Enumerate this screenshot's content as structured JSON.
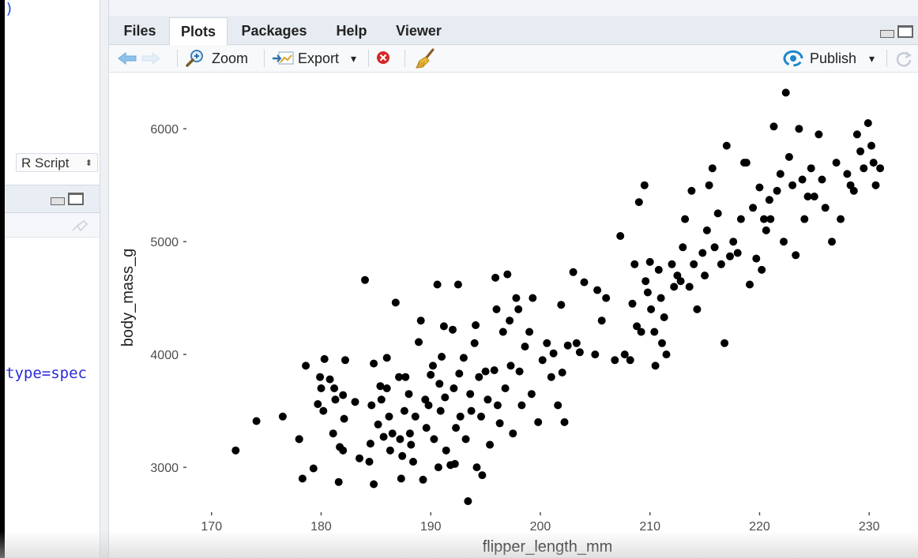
{
  "left_pane": {
    "paren": ")",
    "script_type": "R Script",
    "script_type_arrows": "⬍",
    "code_fragment": "type=spec"
  },
  "tabs": [
    {
      "label": "Files",
      "active": false
    },
    {
      "label": "Plots",
      "active": true
    },
    {
      "label": "Packages",
      "active": false
    },
    {
      "label": "Help",
      "active": false
    },
    {
      "label": "Viewer",
      "active": false
    }
  ],
  "toolbar": {
    "zoom_label": "Zoom",
    "export_label": "Export",
    "publish_label": "Publish",
    "dropdown_glyph": "▾"
  },
  "colors": {
    "tab_bar": "#e7ecf2",
    "points": "#000000",
    "publish_icon": "#1e88c8",
    "remove_icon": "#d62828"
  },
  "chart_data": {
    "type": "scatter",
    "xlabel": "flipper_length_mm",
    "ylabel": "body_mass_g",
    "xlim": [
      168,
      231.5
    ],
    "ylim": [
      2630,
      6470
    ],
    "xticks": [
      170,
      180,
      190,
      200,
      210,
      220,
      230
    ],
    "yticks": [
      3000,
      4000,
      5000,
      6000
    ],
    "grid": false,
    "points": [
      [
        172.2,
        3150
      ],
      [
        174.1,
        3410
      ],
      [
        176.5,
        3450
      ],
      [
        178.0,
        3250
      ],
      [
        178.0,
        3250
      ],
      [
        178.3,
        2900
      ],
      [
        178.6,
        3900
      ],
      [
        179.3,
        2990
      ],
      [
        179.7,
        3560
      ],
      [
        179.9,
        3800
      ],
      [
        180.0,
        3700
      ],
      [
        180.3,
        3960
      ],
      [
        180.2,
        3500
      ],
      [
        180.8,
        3780
      ],
      [
        181.2,
        3700
      ],
      [
        181.1,
        3300
      ],
      [
        181.3,
        3600
      ],
      [
        181.6,
        2870
      ],
      [
        181.7,
        3180
      ],
      [
        182.0,
        3150
      ],
      [
        182.1,
        3430
      ],
      [
        182.2,
        3950
      ],
      [
        182.0,
        3640
      ],
      [
        183.1,
        3580
      ],
      [
        183.5,
        3080
      ],
      [
        184.0,
        4660
      ],
      [
        184.4,
        3050
      ],
      [
        184.6,
        3550
      ],
      [
        184.8,
        3920
      ],
      [
        184.5,
        3210
      ],
      [
        184.8,
        2850
      ],
      [
        185.2,
        3380
      ],
      [
        185.4,
        3720
      ],
      [
        185.5,
        3600
      ],
      [
        185.7,
        3270
      ],
      [
        186.0,
        3970
      ],
      [
        186.0,
        3700
      ],
      [
        186.2,
        3450
      ],
      [
        186.3,
        3150
      ],
      [
        186.5,
        3300
      ],
      [
        186.8,
        4460
      ],
      [
        187.1,
        3800
      ],
      [
        187.2,
        3250
      ],
      [
        187.4,
        3100
      ],
      [
        187.3,
        2900
      ],
      [
        187.6,
        3500
      ],
      [
        187.7,
        3800
      ],
      [
        188.0,
        3650
      ],
      [
        188.1,
        3300
      ],
      [
        188.2,
        3200
      ],
      [
        188.4,
        3050
      ],
      [
        188.6,
        3450
      ],
      [
        188.9,
        4110
      ],
      [
        189.1,
        4300
      ],
      [
        189.3,
        2890
      ],
      [
        189.5,
        3600
      ],
      [
        189.6,
        3350
      ],
      [
        189.8,
        3550
      ],
      [
        190.0,
        3820
      ],
      [
        190.2,
        3900
      ],
      [
        190.3,
        3250
      ],
      [
        190.6,
        4620
      ],
      [
        190.8,
        3740
      ],
      [
        190.9,
        3500
      ],
      [
        190.7,
        3000
      ],
      [
        191.2,
        4250
      ],
      [
        191.0,
        3980
      ],
      [
        191.3,
        3620
      ],
      [
        191.4,
        3150
      ],
      [
        191.8,
        3020
      ],
      [
        192.0,
        4220
      ],
      [
        192.1,
        3700
      ],
      [
        192.3,
        3350
      ],
      [
        192.5,
        4620
      ],
      [
        192.6,
        3830
      ],
      [
        192.7,
        3450
      ],
      [
        192.2,
        3030
      ],
      [
        193.0,
        3970
      ],
      [
        193.2,
        3250
      ],
      [
        193.4,
        2700
      ],
      [
        193.6,
        3650
      ],
      [
        193.7,
        3500
      ],
      [
        194.0,
        4100
      ],
      [
        194.1,
        4260
      ],
      [
        194.2,
        3000
      ],
      [
        194.4,
        3800
      ],
      [
        194.6,
        3450
      ],
      [
        194.7,
        2930
      ],
      [
        195.0,
        3850
      ],
      [
        195.2,
        3600
      ],
      [
        195.4,
        3200
      ],
      [
        195.8,
        3860
      ],
      [
        195.9,
        4680
      ],
      [
        196.0,
        4400
      ],
      [
        196.1,
        3550
      ],
      [
        196.3,
        3390
      ],
      [
        196.6,
        4200
      ],
      [
        196.8,
        3700
      ],
      [
        197.0,
        4710
      ],
      [
        197.2,
        4300
      ],
      [
        197.3,
        3900
      ],
      [
        197.5,
        3300
      ],
      [
        197.8,
        4500
      ],
      [
        198.0,
        4400
      ],
      [
        198.1,
        3850
      ],
      [
        198.3,
        3550
      ],
      [
        198.6,
        4070
      ],
      [
        199.0,
        4200
      ],
      [
        199.2,
        3650
      ],
      [
        199.3,
        4500
      ],
      [
        199.8,
        3400
      ],
      [
        200.2,
        3950
      ],
      [
        200.6,
        4100
      ],
      [
        201.0,
        3800
      ],
      [
        201.2,
        4010
      ],
      [
        201.6,
        3550
      ],
      [
        201.9,
        4440
      ],
      [
        202.0,
        3840
      ],
      [
        202.2,
        3400
      ],
      [
        202.5,
        4080
      ],
      [
        203.0,
        4730
      ],
      [
        203.3,
        4100
      ],
      [
        203.6,
        4020
      ],
      [
        204.0,
        4640
      ],
      [
        205.0,
        4000
      ],
      [
        205.2,
        4570
      ],
      [
        205.6,
        4300
      ],
      [
        206.0,
        4500
      ],
      [
        206.8,
        3950
      ],
      [
        207.3,
        5050
      ],
      [
        207.7,
        4000
      ],
      [
        208.2,
        3950
      ],
      [
        208.4,
        4450
      ],
      [
        208.6,
        4800
      ],
      [
        208.8,
        4250
      ],
      [
        209.0,
        5350
      ],
      [
        209.2,
        4200
      ],
      [
        209.5,
        5500
      ],
      [
        209.6,
        4650
      ],
      [
        209.8,
        4550
      ],
      [
        210.0,
        4820
      ],
      [
        210.1,
        4400
      ],
      [
        210.4,
        4200
      ],
      [
        210.5,
        3900
      ],
      [
        210.8,
        4750
      ],
      [
        211.0,
        4500
      ],
      [
        211.1,
        4100
      ],
      [
        211.3,
        4330
      ],
      [
        211.5,
        4000
      ],
      [
        212.0,
        4800
      ],
      [
        212.2,
        4600
      ],
      [
        212.5,
        4700
      ],
      [
        212.8,
        4650
      ],
      [
        213.0,
        4950
      ],
      [
        213.2,
        5200
      ],
      [
        213.6,
        4600
      ],
      [
        213.8,
        5450
      ],
      [
        214.0,
        4800
      ],
      [
        214.3,
        4400
      ],
      [
        214.8,
        4900
      ],
      [
        215.0,
        4700
      ],
      [
        215.2,
        5100
      ],
      [
        215.4,
        5500
      ],
      [
        215.7,
        5650
      ],
      [
        215.9,
        4950
      ],
      [
        216.2,
        5250
      ],
      [
        216.5,
        4800
      ],
      [
        216.8,
        4100
      ],
      [
        217.0,
        5850
      ],
      [
        217.3,
        4870
      ],
      [
        217.6,
        5000
      ],
      [
        218.0,
        4900
      ],
      [
        218.3,
        5200
      ],
      [
        218.6,
        5700
      ],
      [
        218.8,
        5700
      ],
      [
        219.1,
        4620
      ],
      [
        219.4,
        5300
      ],
      [
        219.7,
        4850
      ],
      [
        220.0,
        5480
      ],
      [
        220.2,
        4750
      ],
      [
        220.4,
        5200
      ],
      [
        220.6,
        5100
      ],
      [
        220.9,
        5370
      ],
      [
        221.0,
        5200
      ],
      [
        221.3,
        6020
      ],
      [
        221.6,
        5450
      ],
      [
        221.9,
        5600
      ],
      [
        222.2,
        5000
      ],
      [
        222.4,
        6320
      ],
      [
        222.7,
        5750
      ],
      [
        223.0,
        5500
      ],
      [
        223.3,
        4880
      ],
      [
        223.6,
        6000
      ],
      [
        223.9,
        5550
      ],
      [
        224.1,
        5200
      ],
      [
        224.4,
        5400
      ],
      [
        224.7,
        5650
      ],
      [
        225.0,
        5400
      ],
      [
        225.4,
        5950
      ],
      [
        225.7,
        5550
      ],
      [
        226.0,
        5300
      ],
      [
        226.6,
        5000
      ],
      [
        227.0,
        5700
      ],
      [
        227.4,
        5200
      ],
      [
        228.0,
        5600
      ],
      [
        228.3,
        5500
      ],
      [
        228.6,
        5450
      ],
      [
        228.9,
        5950
      ],
      [
        229.2,
        5800
      ],
      [
        229.5,
        5650
      ],
      [
        229.9,
        6050
      ],
      [
        230.2,
        5850
      ],
      [
        230.4,
        5700
      ],
      [
        230.6,
        5500
      ],
      [
        231.0,
        5650
      ]
    ]
  }
}
